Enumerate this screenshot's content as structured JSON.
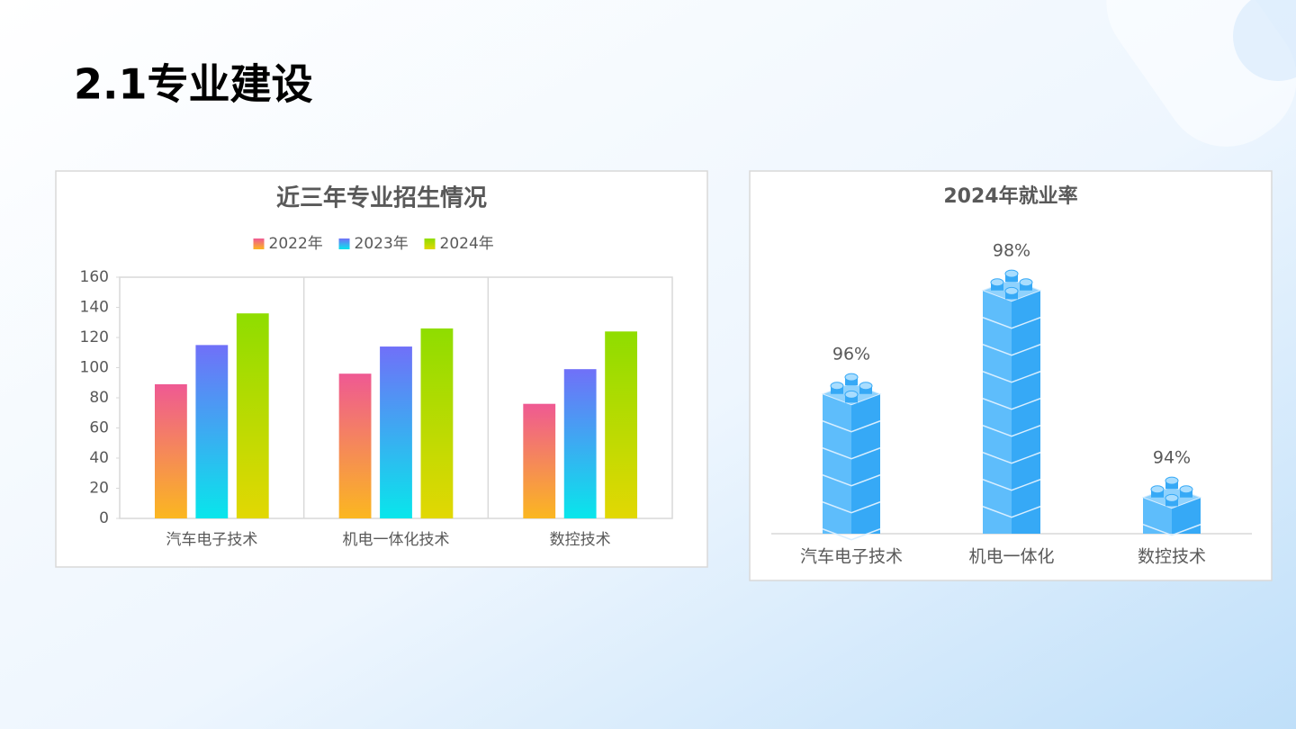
{
  "title": "2.1专业建设",
  "chart_data": [
    {
      "type": "bar",
      "title": "近三年专业招生情况",
      "categories": [
        "汽车电子技术",
        "机电一体化技术",
        "数控技术"
      ],
      "series": [
        {
          "name": "2022年",
          "colors": [
            "#ef5993",
            "#fbb720"
          ],
          "values": [
            89,
            96,
            76
          ]
        },
        {
          "name": "2023年",
          "colors": [
            "#7070f8",
            "#08e6eb"
          ],
          "values": [
            115,
            114,
            99
          ]
        },
        {
          "name": "2024年",
          "colors": [
            "#8fdd00",
            "#e2d803"
          ],
          "values": [
            136,
            126,
            124
          ]
        }
      ],
      "ylim": [
        0,
        160
      ],
      "yticks": [
        0,
        20,
        40,
        60,
        80,
        100,
        120,
        140,
        160
      ],
      "legend": "top",
      "category_dividers": true
    },
    {
      "type": "pictorial",
      "title": "2024年就业率",
      "categories": [
        "汽车电子技术",
        "机电一体化",
        "数控技术"
      ],
      "values": [
        96,
        98,
        94
      ],
      "value_labels": [
        "96%",
        "98%",
        "94%"
      ],
      "colors": [
        "#5ebdfb",
        "#36a9f6"
      ],
      "ylim": [
        93.3,
        98.5
      ]
    }
  ]
}
